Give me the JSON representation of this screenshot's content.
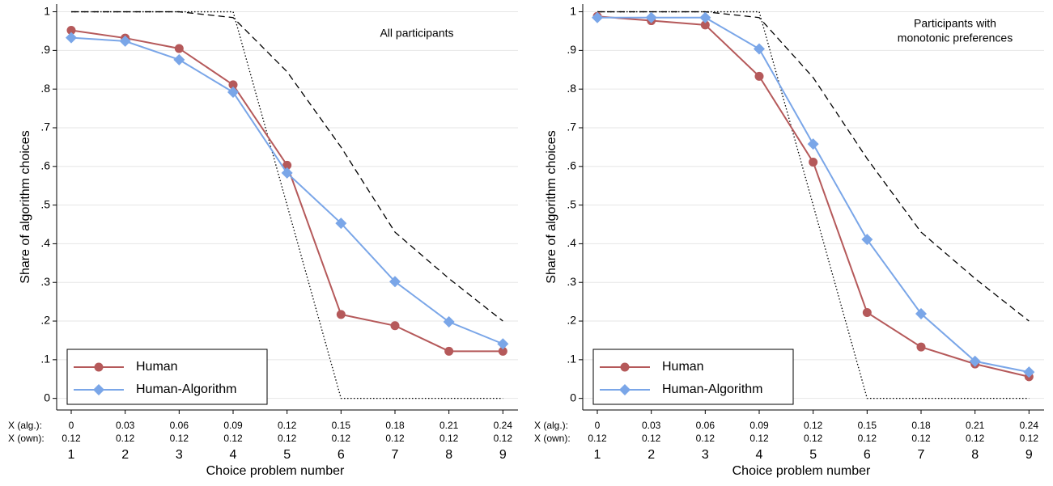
{
  "chart_data": [
    {
      "type": "line",
      "annotation": [
        "All participants"
      ],
      "y_label": "Share of algorithm choices",
      "x_label": "Choice problem number",
      "x": [
        1,
        2,
        3,
        4,
        5,
        6,
        7,
        8,
        9
      ],
      "xlim": [
        0.73,
        9.28
      ],
      "ylim": [
        -0.03,
        1.02
      ],
      "yticks": [
        0,
        {
          "value": 0.1,
          "label": ".1"
        },
        {
          "value": 0.2,
          "label": ".2"
        },
        {
          "value": 0.3,
          "label": ".3"
        },
        {
          "value": 0.4,
          "label": ".4"
        },
        {
          "value": 0.5,
          "label": ".5"
        },
        {
          "value": 0.6,
          "label": ".6"
        },
        {
          "value": 0.7,
          "label": ".7"
        },
        {
          "value": 0.8,
          "label": ".8"
        },
        {
          "value": 0.9,
          "label": ".9"
        },
        1
      ],
      "grid": true,
      "legend": "lower left",
      "x_alg_label": "X (alg.):",
      "x_alg": [
        0,
        0.03,
        0.06,
        0.09,
        0.12,
        0.15,
        0.18,
        0.21,
        0.24
      ],
      "x_own_label": "X (own):",
      "x_own": [
        0.12,
        0.12,
        0.12,
        0.12,
        0.12,
        0.12,
        0.12,
        0.12,
        0.12
      ],
      "series": [
        {
          "color": "#000000",
          "dash": "dashed",
          "values": [
            1,
            1,
            1,
            0.985,
            0.845,
            0.65,
            0.43,
            0.31,
            0.2
          ]
        },
        {
          "color": "#000000",
          "dash": "dotted",
          "values": [
            1,
            1,
            1,
            1,
            0.5,
            0,
            0,
            0,
            0
          ]
        },
        {
          "name": "Human",
          "color": "#b5595a",
          "marker": "circle",
          "values": [
            0.952,
            0.932,
            0.905,
            0.811,
            0.603,
            0.217,
            0.188,
            0.122,
            0.122
          ]
        },
        {
          "name": "Human-Algorithm",
          "color": "#7aa6e8",
          "marker": "diamond",
          "values": [
            0.933,
            0.924,
            0.876,
            0.792,
            0.583,
            0.453,
            0.302,
            0.198,
            0.141
          ]
        }
      ]
    },
    {
      "type": "line",
      "annotation": [
        "Participants with",
        "monotonic preferences"
      ],
      "y_label": "Share of algorithm choices",
      "x_label": "Choice problem number",
      "x": [
        1,
        2,
        3,
        4,
        5,
        6,
        7,
        8,
        9
      ],
      "xlim": [
        0.73,
        9.28
      ],
      "ylim": [
        -0.03,
        1.02
      ],
      "yticks": [
        0,
        {
          "value": 0.1,
          "label": ".1"
        },
        {
          "value": 0.2,
          "label": ".2"
        },
        {
          "value": 0.3,
          "label": ".3"
        },
        {
          "value": 0.4,
          "label": ".4"
        },
        {
          "value": 0.5,
          "label": ".5"
        },
        {
          "value": 0.6,
          "label": ".6"
        },
        {
          "value": 0.7,
          "label": ".7"
        },
        {
          "value": 0.8,
          "label": ".8"
        },
        {
          "value": 0.9,
          "label": ".9"
        },
        1
      ],
      "grid": true,
      "legend": "lower left",
      "x_alg_label": "X (alg.):",
      "x_alg": [
        0,
        0.03,
        0.06,
        0.09,
        0.12,
        0.15,
        0.18,
        0.21,
        0.24
      ],
      "x_own_label": "X (own):",
      "x_own": [
        0.12,
        0.12,
        0.12,
        0.12,
        0.12,
        0.12,
        0.12,
        0.12,
        0.12
      ],
      "series": [
        {
          "color": "#000000",
          "dash": "dashed",
          "values": [
            1,
            1,
            1,
            0.985,
            0.83,
            0.62,
            0.43,
            0.31,
            0.2
          ]
        },
        {
          "color": "#000000",
          "dash": "dotted",
          "values": [
            1,
            1,
            1,
            1,
            0.5,
            0,
            0,
            0,
            0
          ]
        },
        {
          "name": "Human",
          "color": "#b5595a",
          "marker": "circle",
          "values": [
            0.988,
            0.977,
            0.966,
            0.833,
            0.611,
            0.222,
            0.133,
            0.089,
            0.056
          ]
        },
        {
          "name": "Human-Algorithm",
          "color": "#7aa6e8",
          "marker": "diamond",
          "values": [
            0.985,
            0.985,
            0.985,
            0.904,
            0.658,
            0.411,
            0.219,
            0.096,
            0.068
          ]
        }
      ]
    }
  ]
}
